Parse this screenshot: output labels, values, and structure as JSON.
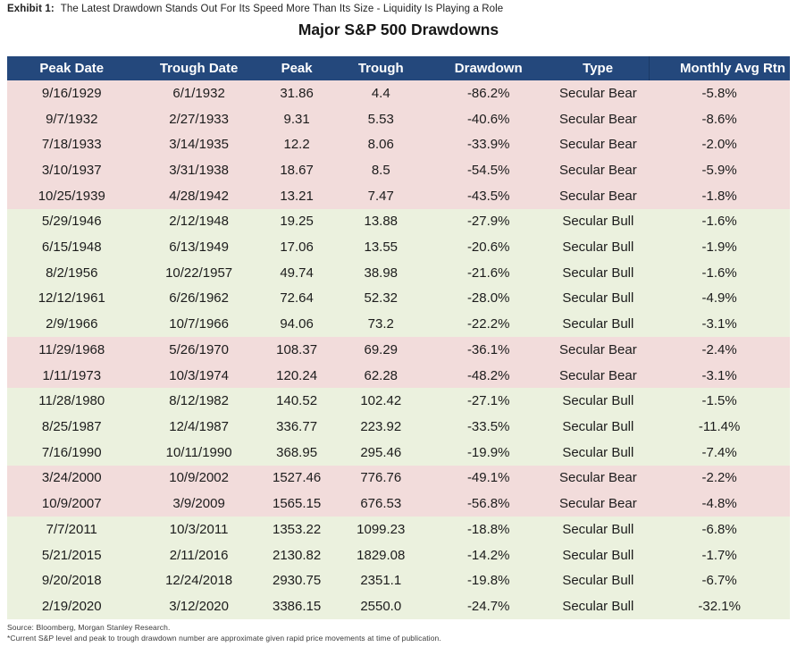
{
  "exhibit": {
    "label": "Exhibit 1:",
    "text": "The Latest Drawdown Stands Out For Its Speed More Than Its Size - Liquidity Is Playing a Role"
  },
  "title": "Major S&P 500 Drawdowns",
  "table": {
    "columns": [
      "Peak Date",
      "Trough Date",
      "Peak",
      "Trough",
      "Drawdown",
      "Type",
      "Monthly Avg Rtn"
    ],
    "rows": [
      [
        "9/16/1929",
        "6/1/1932",
        "31.86",
        "4.4",
        "-86.2%",
        "Secular Bear",
        "-5.8%"
      ],
      [
        "9/7/1932",
        "2/27/1933",
        "9.31",
        "5.53",
        "-40.6%",
        "Secular Bear",
        "-8.6%"
      ],
      [
        "7/18/1933",
        "3/14/1935",
        "12.2",
        "8.06",
        "-33.9%",
        "Secular Bear",
        "-2.0%"
      ],
      [
        "3/10/1937",
        "3/31/1938",
        "18.67",
        "8.5",
        "-54.5%",
        "Secular Bear",
        "-5.9%"
      ],
      [
        "10/25/1939",
        "4/28/1942",
        "13.21",
        "7.47",
        "-43.5%",
        "Secular Bear",
        "-1.8%"
      ],
      [
        "5/29/1946",
        "2/12/1948",
        "19.25",
        "13.88",
        "-27.9%",
        "Secular Bull",
        "-1.6%"
      ],
      [
        "6/15/1948",
        "6/13/1949",
        "17.06",
        "13.55",
        "-20.6%",
        "Secular Bull",
        "-1.9%"
      ],
      [
        "8/2/1956",
        "10/22/1957",
        "49.74",
        "38.98",
        "-21.6%",
        "Secular Bull",
        "-1.6%"
      ],
      [
        "12/12/1961",
        "6/26/1962",
        "72.64",
        "52.32",
        "-28.0%",
        "Secular Bull",
        "-4.9%"
      ],
      [
        "2/9/1966",
        "10/7/1966",
        "94.06",
        "73.2",
        "-22.2%",
        "Secular Bull",
        "-3.1%"
      ],
      [
        "11/29/1968",
        "5/26/1970",
        "108.37",
        "69.29",
        "-36.1%",
        "Secular Bear",
        "-2.4%"
      ],
      [
        "1/11/1973",
        "10/3/1974",
        "120.24",
        "62.28",
        "-48.2%",
        "Secular Bear",
        "-3.1%"
      ],
      [
        "11/28/1980",
        "8/12/1982",
        "140.52",
        "102.42",
        "-27.1%",
        "Secular Bull",
        "-1.5%"
      ],
      [
        "8/25/1987",
        "12/4/1987",
        "336.77",
        "223.92",
        "-33.5%",
        "Secular Bull",
        "-11.4%"
      ],
      [
        "7/16/1990",
        "10/11/1990",
        "368.95",
        "295.46",
        "-19.9%",
        "Secular Bull",
        "-7.4%"
      ],
      [
        "3/24/2000",
        "10/9/2002",
        "1527.46",
        "776.76",
        "-49.1%",
        "Secular Bear",
        "-2.2%"
      ],
      [
        "10/9/2007",
        "3/9/2009",
        "1565.15",
        "676.53",
        "-56.8%",
        "Secular Bear",
        "-4.8%"
      ],
      [
        "7/7/2011",
        "10/3/2011",
        "1353.22",
        "1099.23",
        "-18.8%",
        "Secular Bull",
        "-6.8%"
      ],
      [
        "5/21/2015",
        "2/11/2016",
        "2130.82",
        "1829.08",
        "-14.2%",
        "Secular Bull",
        "-1.7%"
      ],
      [
        "9/20/2018",
        "12/24/2018",
        "2930.75",
        "2351.1",
        "-19.8%",
        "Secular Bull",
        "-6.7%"
      ],
      [
        "2/19/2020",
        "3/12/2020",
        "3386.15",
        "2550.0",
        "-24.7%",
        "Secular Bull",
        "-32.1%"
      ]
    ]
  },
  "footer": {
    "source": "Source: Bloomberg, Morgan Stanley Research.",
    "note": "*Current S&P level and peak to trough drawdown number are approximate given rapid price movements at time of publication."
  },
  "colors": {
    "header_bg": "#24487C",
    "header_text": "#FFFFFF",
    "header_divider": "#1B3A66",
    "bear_bg": "#F2DCDB",
    "bull_bg": "#EBF1DE",
    "body_text": "#1C1C1C"
  }
}
